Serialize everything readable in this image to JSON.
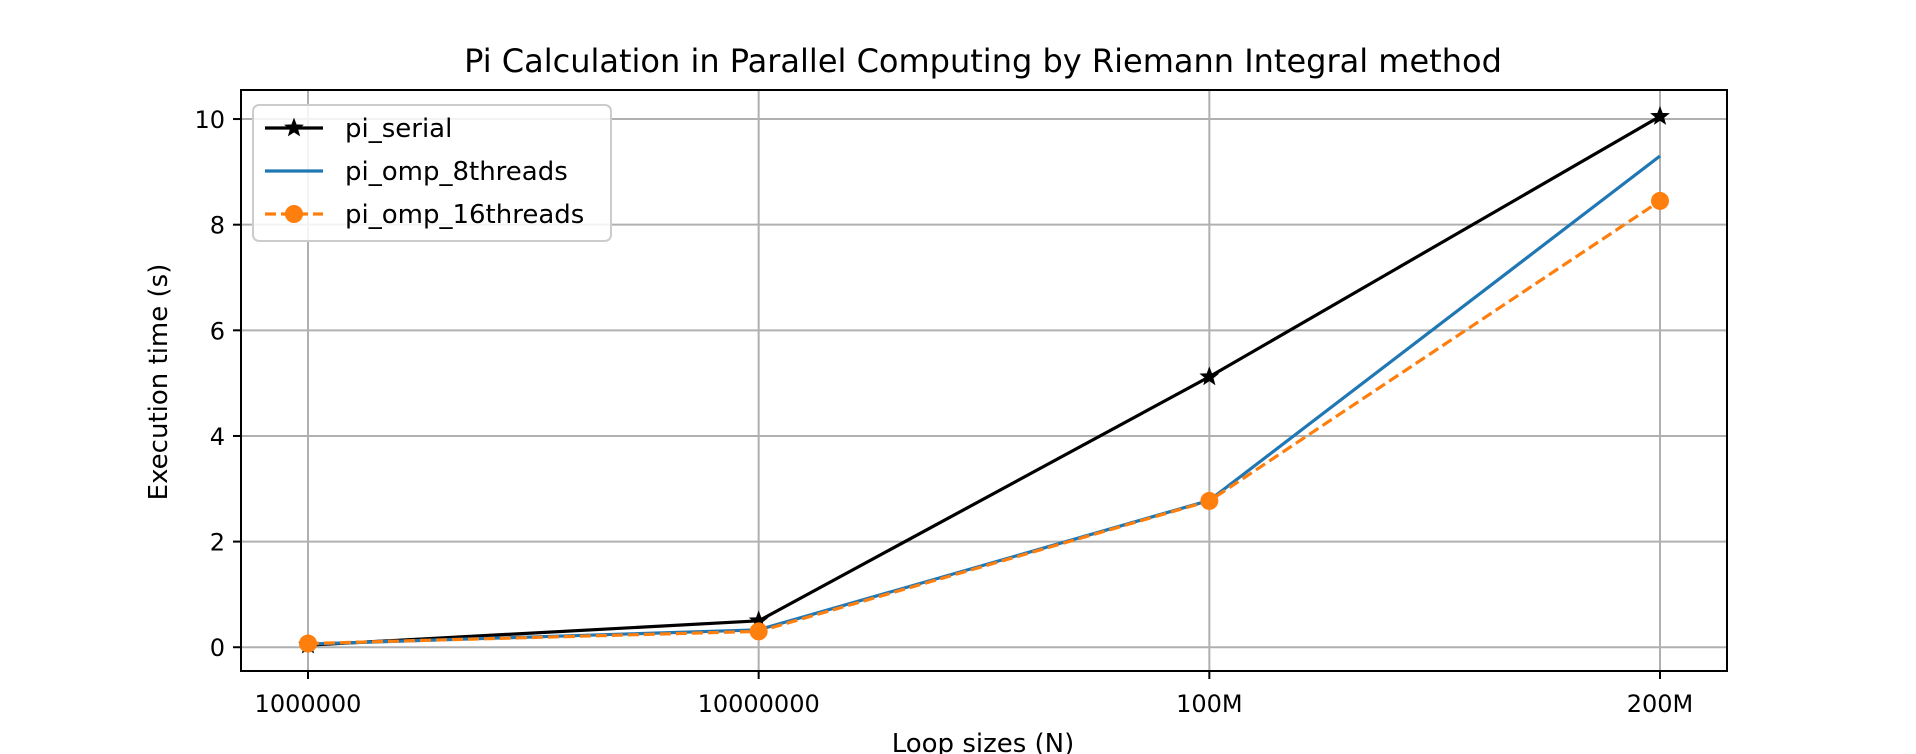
{
  "chart_data": {
    "type": "line",
    "title": "Pi Calculation in Parallel Computing by Riemann Integral method",
    "xlabel": "Loop sizes (N)",
    "ylabel": "Execution time (s)",
    "categories": [
      "1000000",
      "10000000",
      "100M",
      "200M"
    ],
    "ylim": [
      -0.45,
      10.55
    ],
    "yticks": [
      0,
      2,
      4,
      6,
      8,
      10
    ],
    "grid": true,
    "legend_position": "upper-left",
    "series": [
      {
        "name": "pi_serial",
        "values": [
          0.04,
          0.5,
          5.12,
          10.05
        ],
        "color": "#000000",
        "marker": "star",
        "line_style": "solid"
      },
      {
        "name": "pi_omp_8threads",
        "values": [
          0.06,
          0.33,
          2.78,
          9.3
        ],
        "color": "#1f77b4",
        "marker": "none",
        "line_style": "solid"
      },
      {
        "name": "pi_omp_16threads",
        "values": [
          0.07,
          0.3,
          2.77,
          8.45
        ],
        "color": "#ff7f0e",
        "marker": "circle",
        "line_style": "dashed"
      }
    ]
  }
}
